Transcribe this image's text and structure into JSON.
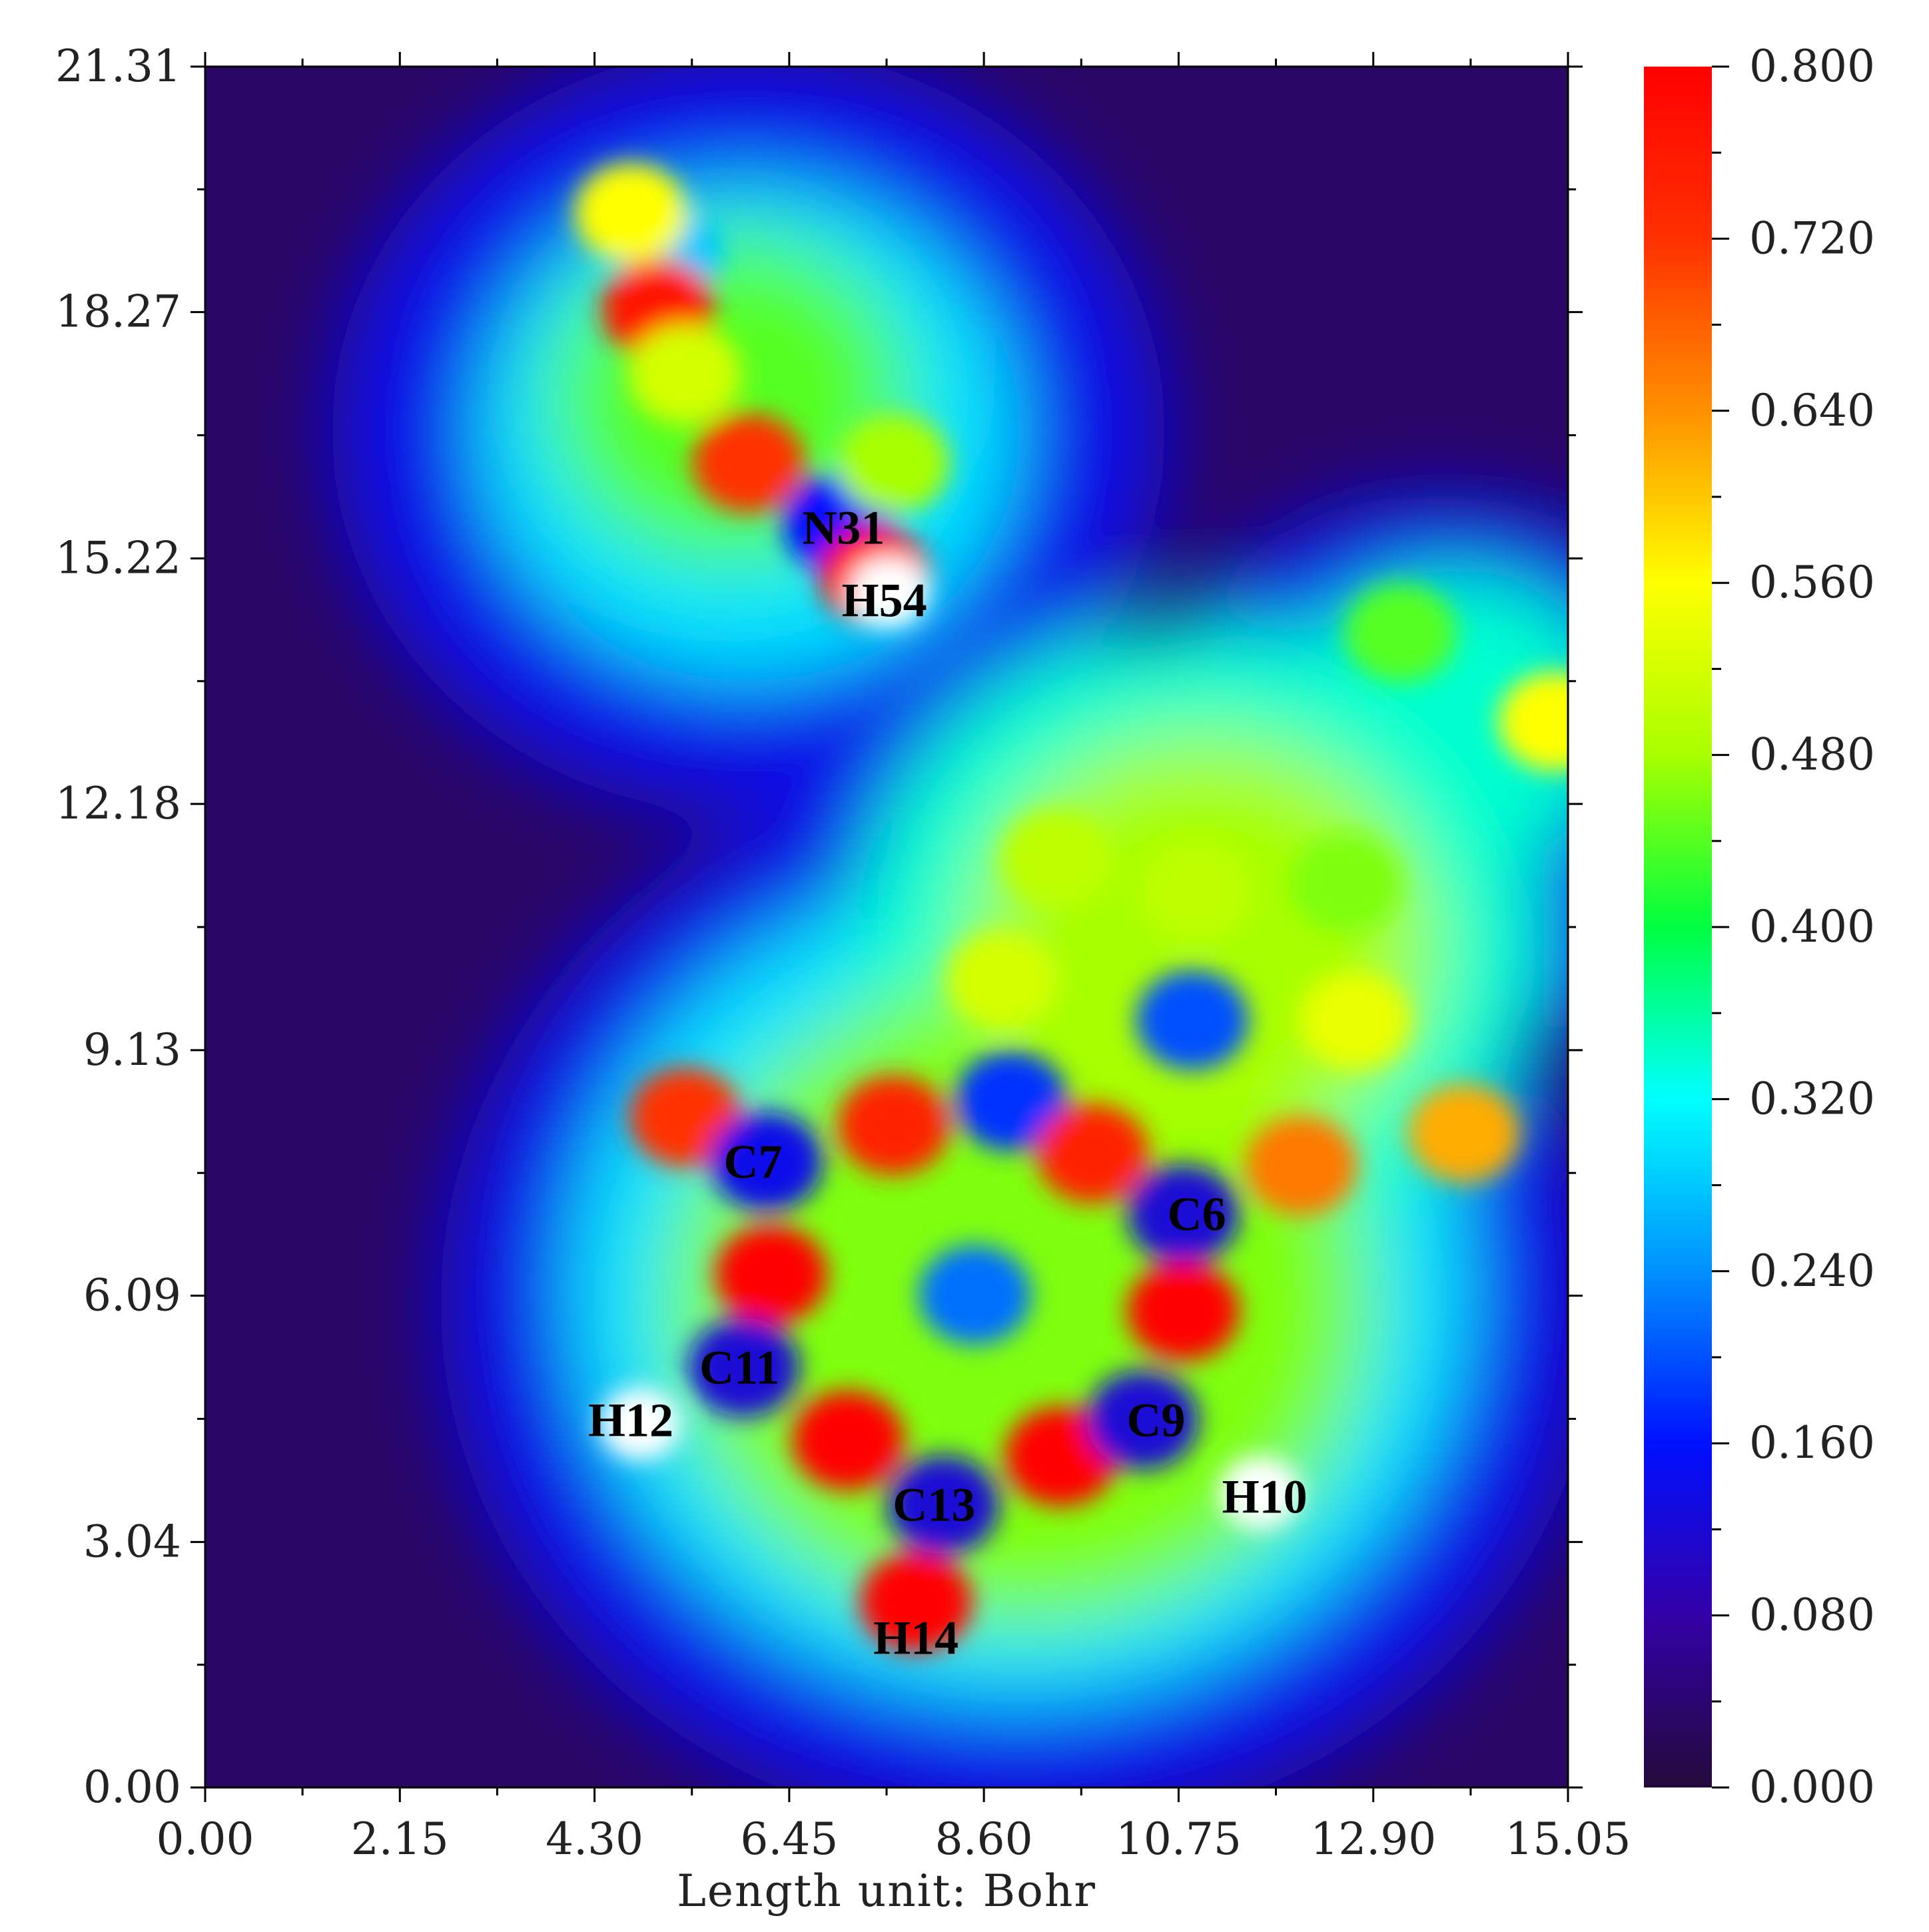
{
  "chart_data": {
    "type": "heatmap",
    "xlabel": "Length unit: Bohr",
    "ylabel": "",
    "xlim": [
      0.0,
      15.05
    ],
    "ylim": [
      0.0,
      21.31
    ],
    "x_ticks": [
      "0.00",
      "2.15",
      "4.30",
      "6.45",
      "8.60",
      "10.75",
      "12.90",
      "15.05"
    ],
    "y_ticks": [
      "0.00",
      "3.04",
      "6.09",
      "9.13",
      "12.18",
      "15.22",
      "18.27",
      "21.31"
    ],
    "colorbar": {
      "range": [
        0.0,
        0.8
      ],
      "ticks": [
        "0.000",
        "0.080",
        "0.160",
        "0.240",
        "0.320",
        "0.400",
        "0.480",
        "0.560",
        "0.640",
        "0.720",
        "0.800"
      ],
      "colors": [
        "#230a3a",
        "#3400a8",
        "#0010ff",
        "#0090ff",
        "#00ffff",
        "#00ff40",
        "#a8ff00",
        "#ffff00",
        "#ff9000",
        "#ff3000",
        "#ff0000"
      ]
    },
    "atoms": [
      {
        "label": "N31",
        "x": 7.05,
        "y": 15.6
      },
      {
        "label": "H54",
        "x": 7.5,
        "y": 14.7
      },
      {
        "label": "C7",
        "x": 6.05,
        "y": 7.75
      },
      {
        "label": "C6",
        "x": 10.95,
        "y": 7.1
      },
      {
        "label": "C11",
        "x": 5.9,
        "y": 5.2
      },
      {
        "label": "H12",
        "x": 4.7,
        "y": 4.55
      },
      {
        "label": "C9",
        "x": 10.5,
        "y": 4.55
      },
      {
        "label": "C13",
        "x": 8.05,
        "y": 3.5
      },
      {
        "label": "H10",
        "x": 11.7,
        "y": 3.6
      },
      {
        "label": "H14",
        "x": 7.85,
        "y": 1.85
      }
    ],
    "features": [
      {
        "x": 5.1,
        "y": 19.0,
        "v": 0.28
      },
      {
        "x": 5.0,
        "y": 18.3,
        "v": 0.76
      },
      {
        "x": 4.7,
        "y": 19.5,
        "v": 0.56
      },
      {
        "x": 5.3,
        "y": 17.5,
        "v": 0.52
      },
      {
        "x": 6.0,
        "y": 16.4,
        "v": 0.72
      },
      {
        "x": 7.0,
        "y": 15.65,
        "v": 0.16
      },
      {
        "x": 7.4,
        "y": 15.0,
        "v": 0.78
      },
      {
        "x": 7.55,
        "y": 14.8,
        "v": 1.0
      },
      {
        "x": 7.6,
        "y": 16.4,
        "v": 0.48
      },
      {
        "x": 13.2,
        "y": 14.3,
        "v": 0.44
      },
      {
        "x": 14.9,
        "y": 13.2,
        "v": 0.56
      },
      {
        "x": 9.4,
        "y": 11.5,
        "v": 0.5
      },
      {
        "x": 10.95,
        "y": 11.1,
        "v": 0.5
      },
      {
        "x": 12.6,
        "y": 11.2,
        "v": 0.46
      },
      {
        "x": 8.8,
        "y": 10.0,
        "v": 0.52
      },
      {
        "x": 12.7,
        "y": 9.5,
        "v": 0.54
      },
      {
        "x": 10.9,
        "y": 9.5,
        "v": 0.2
      },
      {
        "x": 8.9,
        "y": 8.5,
        "v": 0.18
      },
      {
        "x": 5.3,
        "y": 8.3,
        "v": 0.72
      },
      {
        "x": 7.6,
        "y": 8.2,
        "v": 0.74
      },
      {
        "x": 9.8,
        "y": 7.85,
        "v": 0.74
      },
      {
        "x": 12.1,
        "y": 7.7,
        "v": 0.66
      },
      {
        "x": 13.9,
        "y": 8.1,
        "v": 0.62
      },
      {
        "x": 6.2,
        "y": 7.75,
        "v": 0.14
      },
      {
        "x": 10.8,
        "y": 7.1,
        "v": 0.12
      },
      {
        "x": 6.25,
        "y": 6.35,
        "v": 0.8
      },
      {
        "x": 10.8,
        "y": 5.9,
        "v": 0.8
      },
      {
        "x": 8.5,
        "y": 6.1,
        "v": 0.22
      },
      {
        "x": 5.95,
        "y": 5.2,
        "v": 0.12
      },
      {
        "x": 4.8,
        "y": 4.5,
        "v": 0.9
      },
      {
        "x": 7.1,
        "y": 4.3,
        "v": 0.8
      },
      {
        "x": 9.45,
        "y": 4.1,
        "v": 0.8
      },
      {
        "x": 10.35,
        "y": 4.55,
        "v": 0.12
      },
      {
        "x": 8.15,
        "y": 3.5,
        "v": 0.12
      },
      {
        "x": 11.65,
        "y": 3.65,
        "v": 0.95
      },
      {
        "x": 7.85,
        "y": 2.3,
        "v": 0.8
      }
    ]
  }
}
